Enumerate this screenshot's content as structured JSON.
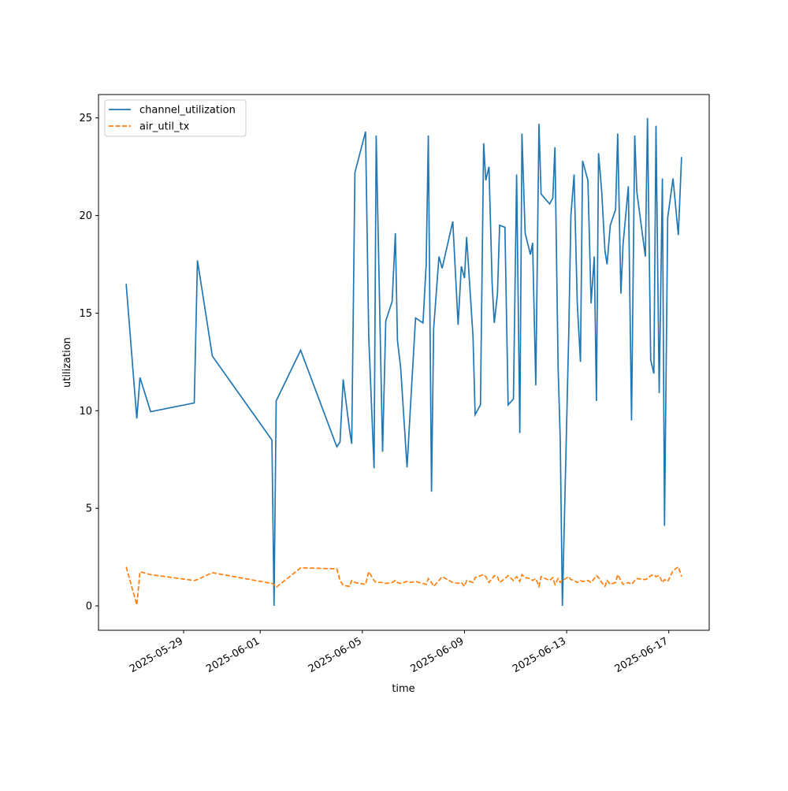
{
  "chart_data": {
    "type": "line",
    "x_label": "time",
    "y_label": "utilization",
    "x": [
      "2025-05-26T18:00",
      "2025-05-27T04:00",
      "2025-05-27T07:00",
      "2025-05-27T17:00",
      "2025-05-29T10:00",
      "2025-05-29T13:00",
      "2025-05-30T03:00",
      "2025-06-01T11:00",
      "2025-06-01T13:00",
      "2025-06-01T15:00",
      "2025-06-02T14:00",
      "2025-06-04T00:00",
      "2025-06-04T03:00",
      "2025-06-04T06:00",
      "2025-06-04T12:00",
      "2025-06-04T14:00",
      "2025-06-04T17:00",
      "2025-06-05T03:00",
      "2025-06-05T06:00",
      "2025-06-05T11:00",
      "2025-06-05T13:00",
      "2025-06-05T19:00",
      "2025-06-05T22:00",
      "2025-06-06T04:00",
      "2025-06-06T07:00",
      "2025-06-06T09:00",
      "2025-06-06T12:00",
      "2025-06-06T18:00",
      "2025-06-06T21:00",
      "2025-06-07T02:00",
      "2025-06-07T09:00",
      "2025-06-07T12:00",
      "2025-06-07T14:00",
      "2025-06-07T17:00",
      "2025-06-07T19:00",
      "2025-06-08T00:00",
      "2025-06-08T03:00",
      "2025-06-08T13:00",
      "2025-06-08T18:00",
      "2025-06-08T21:00",
      "2025-06-09T00:00",
      "2025-06-09T02:00",
      "2025-06-09T08:00",
      "2025-06-09T10:00",
      "2025-06-09T15:00",
      "2025-06-09T18:00",
      "2025-06-09T20:00",
      "2025-06-09T23:00",
      "2025-06-10T02:00",
      "2025-06-10T04:00",
      "2025-06-10T07:00",
      "2025-06-10T09:00",
      "2025-06-10T14:00",
      "2025-06-10T17:00",
      "2025-06-10T22:00",
      "2025-06-11T01:00",
      "2025-06-11T04:00",
      "2025-06-11T06:00",
      "2025-06-11T09:00",
      "2025-06-11T14:00",
      "2025-06-11T16:00",
      "2025-06-11T19:00",
      "2025-06-11T22:00",
      "2025-06-12T00:00",
      "2025-06-12T08:00",
      "2025-06-12T11:00",
      "2025-06-12T13:00",
      "2025-06-12T16:00",
      "2025-06-12T18:00",
      "2025-06-12T20:00",
      "2025-06-13T02:00",
      "2025-06-13T04:00",
      "2025-06-13T07:00",
      "2025-06-13T10:00",
      "2025-06-13T13:00",
      "2025-06-13T15:00",
      "2025-06-13T20:00",
      "2025-06-13T23:00",
      "2025-06-14T02:00",
      "2025-06-14T04:00",
      "2025-06-14T06:00",
      "2025-06-14T09:00",
      "2025-06-14T12:00",
      "2025-06-14T14:00",
      "2025-06-14T17:00",
      "2025-06-14T22:00",
      "2025-06-15T00:00",
      "2025-06-15T03:00",
      "2025-06-15T05:00",
      "2025-06-15T08:00",
      "2025-06-15T10:00",
      "2025-06-15T13:00",
      "2025-06-15T16:00",
      "2025-06-15T18:00",
      "2025-06-16T02:00",
      "2025-06-16T04:00",
      "2025-06-16T07:00",
      "2025-06-16T10:00",
      "2025-06-16T12:00",
      "2025-06-16T15:00",
      "2025-06-16T18:00",
      "2025-06-16T20:00",
      "2025-06-16T23:00",
      "2025-06-17T04:00",
      "2025-06-17T09:00",
      "2025-06-17T12:00"
    ],
    "series": [
      {
        "name": "channel_utilization",
        "color": "#1f77b4",
        "linestyle": "solid",
        "values": [
          16.5,
          9.6,
          11.7,
          9.95,
          10.4,
          17.7,
          12.8,
          8.5,
          0,
          10.5,
          13.1,
          8.15,
          8.4,
          11.6,
          9.0,
          8.3,
          22.2,
          24.3,
          13.8,
          7.05,
          24.1,
          7.9,
          14.6,
          15.6,
          19.1,
          13.6,
          12.2,
          7.1,
          10.0,
          14.75,
          14.5,
          17.5,
          24.1,
          5.85,
          14.2,
          17.9,
          17.3,
          19.7,
          14.4,
          17.4,
          16.8,
          18.9,
          13.8,
          9.8,
          10.3,
          23.7,
          21.8,
          22.5,
          16.5,
          14.5,
          16.0,
          19.5,
          19.4,
          10.3,
          10.6,
          22.1,
          8.85,
          24.2,
          19.1,
          18.0,
          18.6,
          11.3,
          24.7,
          21.1,
          20.6,
          20.9,
          23.5,
          12.2,
          8.5,
          0,
          14.0,
          20.0,
          22.1,
          15.5,
          12.5,
          22.8,
          21.8,
          15.5,
          17.9,
          10.5,
          23.2,
          21.2,
          18.2,
          17.5,
          19.5,
          20.3,
          24.2,
          16.0,
          18.5,
          20.3,
          21.5,
          9.5,
          24.1,
          21.2,
          17.9,
          25.0,
          12.6,
          11.9,
          24.6,
          10.9,
          21.9,
          4.1,
          19.9,
          21.9,
          19.0,
          23.0
        ]
      },
      {
        "name": "air_util_tx",
        "color": "#ff7f0e",
        "linestyle": "dashed",
        "values": [
          2.0,
          0.05,
          1.75,
          1.6,
          1.3,
          1.35,
          1.7,
          1.15,
          1.1,
          0.95,
          1.95,
          1.9,
          1.3,
          1.05,
          1.0,
          1.3,
          1.2,
          1.1,
          1.75,
          1.3,
          1.2,
          1.2,
          1.15,
          1.2,
          1.3,
          1.2,
          1.15,
          1.25,
          1.2,
          1.25,
          1.15,
          1.1,
          1.4,
          1.2,
          1.0,
          1.3,
          1.5,
          1.2,
          1.15,
          1.2,
          1.0,
          1.3,
          1.2,
          1.45,
          1.55,
          1.6,
          1.5,
          1.2,
          1.4,
          1.55,
          1.5,
          1.2,
          1.4,
          1.55,
          1.3,
          1.5,
          1.25,
          1.6,
          1.45,
          1.4,
          1.3,
          1.4,
          1.0,
          1.5,
          1.3,
          1.45,
          1.1,
          1.4,
          1.2,
          1.3,
          1.5,
          1.35,
          1.3,
          1.2,
          1.3,
          1.25,
          1.3,
          1.2,
          1.4,
          1.55,
          1.45,
          1.2,
          1.0,
          1.3,
          1.1,
          1.2,
          1.6,
          1.3,
          1.1,
          1.15,
          1.2,
          1.1,
          1.3,
          1.4,
          1.35,
          1.4,
          1.55,
          1.6,
          1.5,
          1.55,
          1.2,
          1.35,
          1.25,
          1.8,
          2.0,
          1.5
        ]
      }
    ],
    "xlim": [
      "2025-05-25T16:00",
      "2025-06-18T14:00"
    ],
    "xticks": [
      "2025-05-29",
      "2025-06-01",
      "2025-06-05",
      "2025-06-09",
      "2025-06-13",
      "2025-06-17"
    ],
    "ylim": [
      -1.25,
      26.2
    ],
    "yticks": [
      0,
      5,
      10,
      15,
      20,
      25
    ],
    "grid": false,
    "legend": "upper left"
  }
}
